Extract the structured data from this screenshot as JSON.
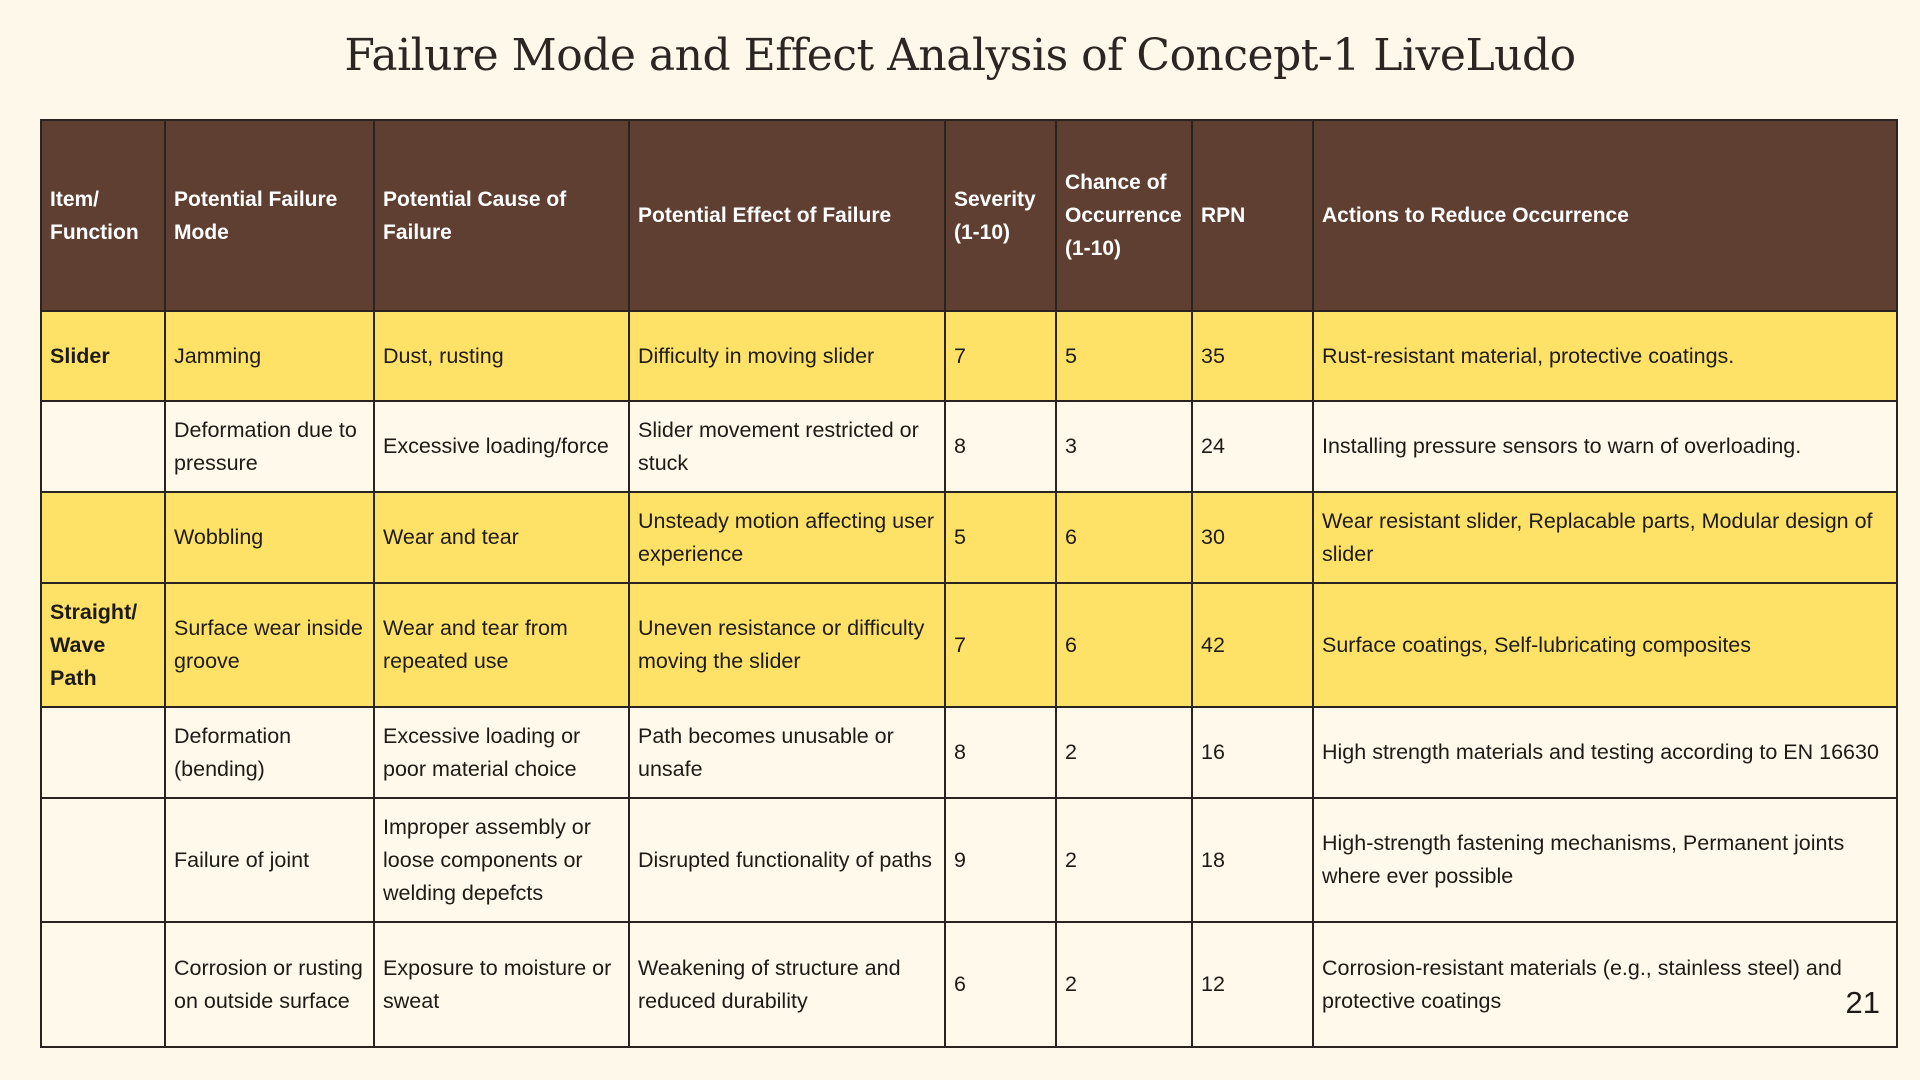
{
  "title": "Failure Mode and Effect Analysis of Concept-1 LiveLudo",
  "page_number": "21",
  "colors": {
    "header_bg": "#5e3f31",
    "highlight_row": "#fee268",
    "plain_row": "#fef9ea",
    "page_bg": "#fdf8e9"
  },
  "table": {
    "headers": [
      "Item/ Function",
      "Potential Failure Mode",
      "Potential Cause of Failure",
      "Potential Effect of Failure",
      "Severity (1-10)",
      "Chance of Occurrence (1-10)",
      "RPN",
      "Actions to Reduce Occurrence"
    ],
    "rows": [
      {
        "highlight": true,
        "cells": [
          "Slider",
          "Jamming",
          "Dust, rusting",
          "Difficulty in moving slider",
          "7",
          "5",
          "35",
          "Rust-resistant material, protective coatings."
        ]
      },
      {
        "highlight": false,
        "cells": [
          "",
          "Deformation due to pressure",
          "Excessive loading/force",
          "Slider movement restricted or stuck",
          "8",
          "3",
          "24",
          "Installing pressure sensors to warn of overloading."
        ]
      },
      {
        "highlight": true,
        "cells": [
          "",
          "Wobbling",
          "Wear and tear",
          "Unsteady motion affecting user experience",
          "5",
          "6",
          "30",
          "Wear resistant slider, Replacable parts, Modular design of slider"
        ]
      },
      {
        "highlight": true,
        "cells": [
          "Straight/ Wave Path",
          "Surface wear inside groove",
          "Wear and tear from repeated use",
          "Uneven resistance or difficulty moving the slider",
          "7",
          "6",
          "42",
          "Surface coatings, Self-lubricating composites"
        ]
      },
      {
        "highlight": false,
        "cells": [
          "",
          "Deformation (bending)",
          "Excessive loading or poor material choice",
          "Path becomes unusable or unsafe",
          "8",
          "2",
          "16",
          "High strength materials and testing according to EN 16630"
        ]
      },
      {
        "highlight": false,
        "cells": [
          "",
          "Failure of joint",
          "Improper assembly or loose components or welding depefcts",
          "Disrupted functionality of paths",
          "9",
          "2",
          "18",
          "High-strength fastening mechanisms, Permanent joints where ever possible"
        ]
      },
      {
        "highlight": false,
        "cells": [
          "",
          "Corrosion or rusting on outside surface",
          "Exposure to moisture or sweat",
          "Weakening of structure and reduced durability",
          "6",
          "2",
          "12",
          "Corrosion-resistant materials (e.g., stainless steel) and protective coatings"
        ]
      }
    ]
  }
}
